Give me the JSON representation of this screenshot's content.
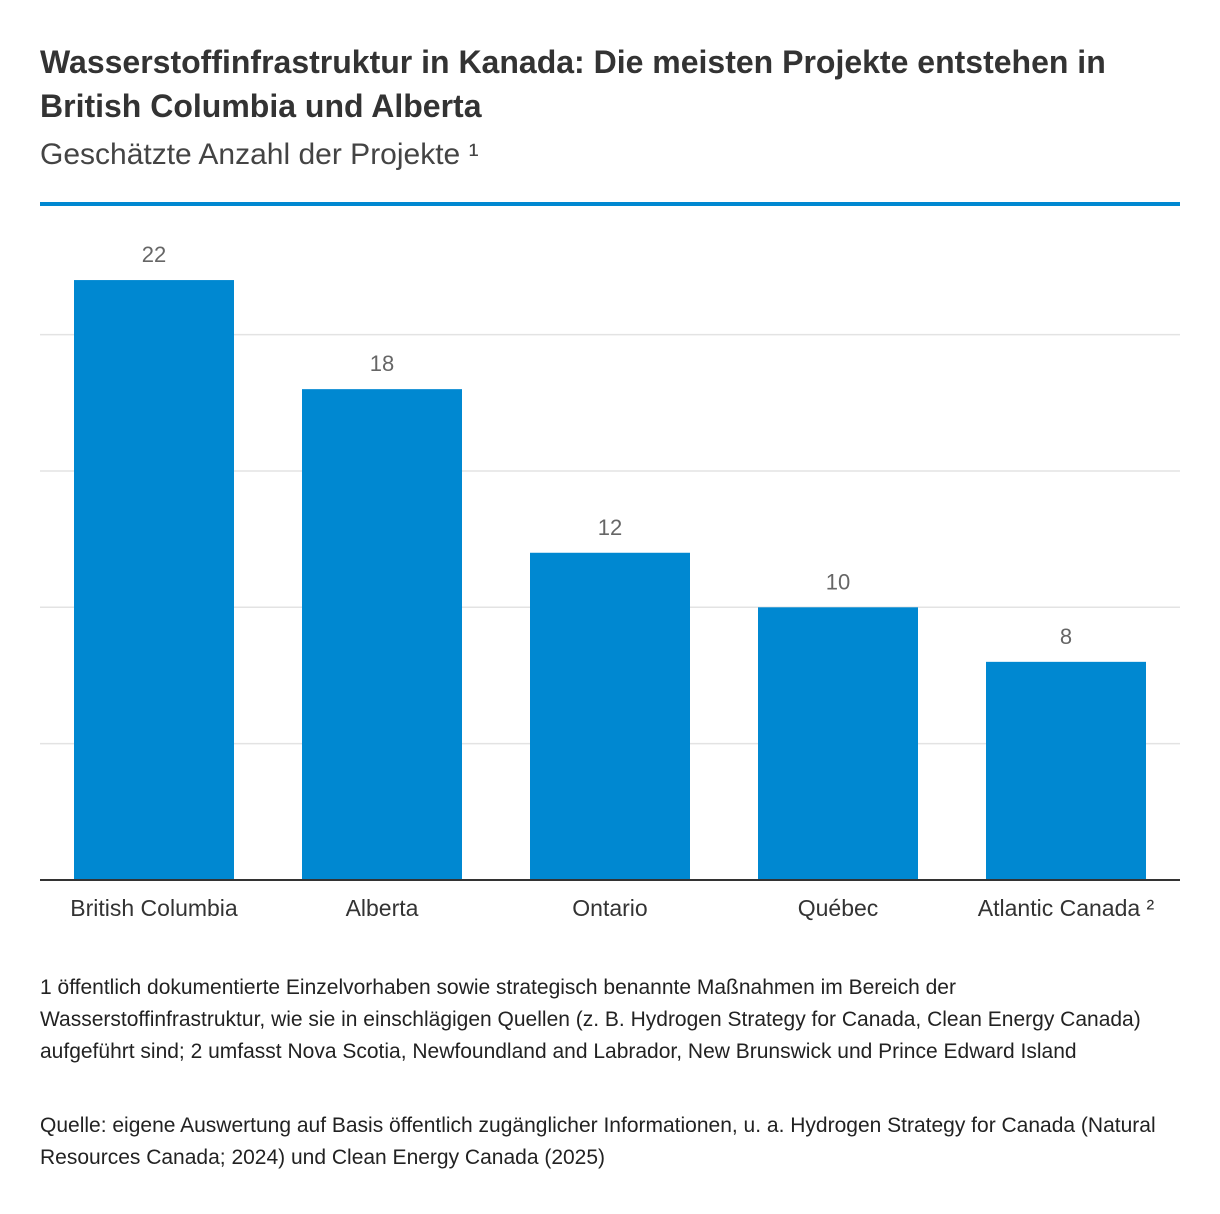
{
  "colors": {
    "bar": "#0088d1",
    "accent_rule": "#0088d1",
    "grid": "#e3e3e3",
    "axis": "#333333",
    "value_label": "#666666",
    "category_label": "#333333"
  },
  "chart_data": {
    "type": "bar",
    "title": "Wasserstoffinfrastruktur in Kanada: Die meisten Projekte entstehen in British Columbia und Alberta",
    "subtitle": "Geschätzte Anzahl der Projekte ¹",
    "categories": [
      "British Columbia",
      "Alberta",
      "Ontario",
      "Québec",
      "Atlantic Canada ²"
    ],
    "values": [
      22,
      18,
      12,
      10,
      8
    ],
    "xlabel": "",
    "ylabel": "",
    "ylim": [
      0,
      25
    ],
    "gridlines": [
      5,
      10,
      15,
      20
    ],
    "grid": true,
    "y_tick_labels_shown": false,
    "data_labels": true
  },
  "footnote": "1 öffentlich dokumentierte Einzelvorhaben sowie strategisch benannte Maßnahmen im Bereich der Wasserstoffinfrastruktur, wie sie in einschlägigen Quellen (z. B. Hydrogen Strategy for Canada, Clean Energy Canada) aufgeführt sind; 2 umfasst Nova Scotia, Newfoundland and Labrador, New Brunswick und Prince Edward Island",
  "source": "Quelle: eigene Auswertung auf Basis öffentlich zugänglicher Informationen, u. a. Hydrogen Strategy for Canada (Natural Resources Canada; 2024) und Clean Energy Canada (2025)"
}
